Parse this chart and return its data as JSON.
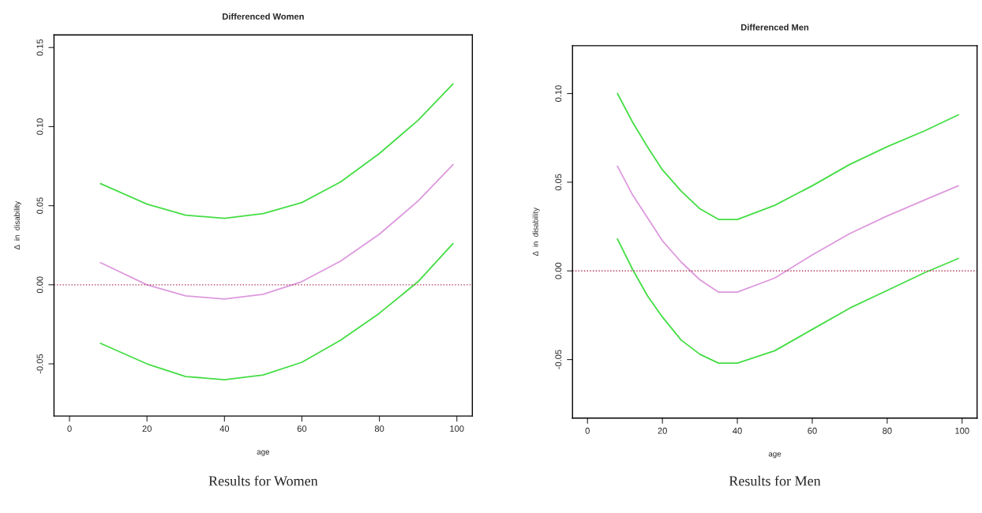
{
  "chart_data": [
    {
      "type": "line",
      "title": "Differenced Women",
      "xlabel": "age",
      "ylabel": "Δ  in  disability",
      "x": [
        8,
        20,
        30,
        40,
        50,
        60,
        70,
        80,
        90,
        99
      ],
      "series": [
        {
          "color": "#44dd44",
          "values": [
            0.064,
            0.051,
            0.044,
            0.042,
            0.045,
            0.052,
            0.065,
            0.083,
            0.104,
            0.127
          ]
        },
        {
          "color": "#dd99dd",
          "values": [
            0.014,
            0.0,
            -0.007,
            -0.009,
            -0.006,
            0.002,
            0.015,
            0.032,
            0.053,
            0.076
          ]
        },
        {
          "color": "#44dd44",
          "values": [
            -0.037,
            -0.05,
            -0.058,
            -0.06,
            -0.057,
            -0.049,
            -0.035,
            -0.018,
            0.002,
            0.026
          ]
        }
      ],
      "xlim": [
        -4,
        104
      ],
      "ylim": [
        -0.083,
        0.158
      ],
      "xticks": [
        0,
        20,
        40,
        60,
        80,
        100
      ],
      "yticks": [
        {
          "value": -0.05,
          "label": "-0.05"
        },
        {
          "value": 0,
          "label": "0.00"
        },
        {
          "value": 0.05,
          "label": "0.05"
        },
        {
          "value": 0.1,
          "label": "0.10"
        },
        {
          "value": 0.15,
          "label": "0.15"
        }
      ],
      "ref_lines": [
        {
          "axis": "y",
          "value": 0,
          "color": "#b03050",
          "line_style": "dotted"
        }
      ],
      "grid": false,
      "annotations": [
        "Results for Women"
      ]
    },
    {
      "type": "line",
      "title": "Differenced Men",
      "xlabel": "age",
      "ylabel": "Δ  in  disability",
      "x": [
        8,
        12,
        16,
        20,
        25,
        30,
        35,
        40,
        50,
        60,
        70,
        80,
        90,
        99
      ],
      "series": [
        {
          "color": "#44dd44",
          "values": [
            0.1,
            0.084,
            0.07,
            0.057,
            0.045,
            0.035,
            0.029,
            0.029,
            0.037,
            0.048,
            0.06,
            0.07,
            0.079,
            0.088
          ]
        },
        {
          "color": "#dd99dd",
          "values": [
            0.059,
            0.043,
            0.03,
            0.017,
            0.005,
            -0.005,
            -0.012,
            -0.012,
            -0.004,
            0.009,
            0.021,
            0.031,
            0.04,
            0.048
          ]
        },
        {
          "color": "#44dd44",
          "values": [
            0.018,
            0.001,
            -0.014,
            -0.026,
            -0.039,
            -0.047,
            -0.052,
            -0.052,
            -0.045,
            -0.033,
            -0.021,
            -0.011,
            -0.001,
            0.007
          ]
        }
      ],
      "xlim": [
        -4,
        104
      ],
      "ylim": [
        -0.083,
        0.127
      ],
      "xticks": [
        0,
        20,
        40,
        60,
        80,
        100
      ],
      "yticks": [
        {
          "value": -0.05,
          "label": "-0.05"
        },
        {
          "value": 0,
          "label": "0.00"
        },
        {
          "value": 0.05,
          "label": "0.05"
        },
        {
          "value": 0.1,
          "label": "0.10"
        }
      ],
      "ref_lines": [
        {
          "axis": "y",
          "value": 0,
          "color": "#b03050",
          "line_style": "dotted"
        }
      ],
      "grid": false,
      "annotations": [
        "Results for Men"
      ]
    }
  ]
}
